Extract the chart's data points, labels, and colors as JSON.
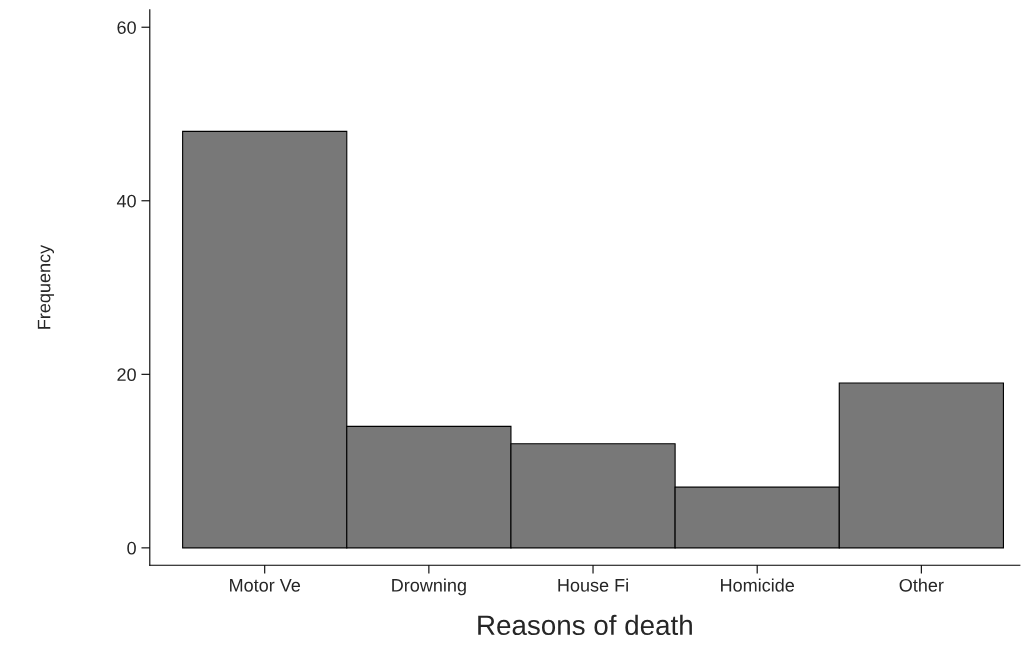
{
  "chart_data": {
    "type": "bar",
    "xlabel": "Reasons of death",
    "ylabel": "Frequency",
    "categories": [
      "Motor Ve",
      "Drowning",
      "House Fi",
      "Homicide",
      "Other"
    ],
    "values": [
      48,
      14,
      12,
      7,
      19
    ],
    "color": "#787878",
    "ylim": [
      -2,
      62
    ],
    "yticks": [
      0,
      20,
      40,
      60
    ],
    "grid": false
  }
}
